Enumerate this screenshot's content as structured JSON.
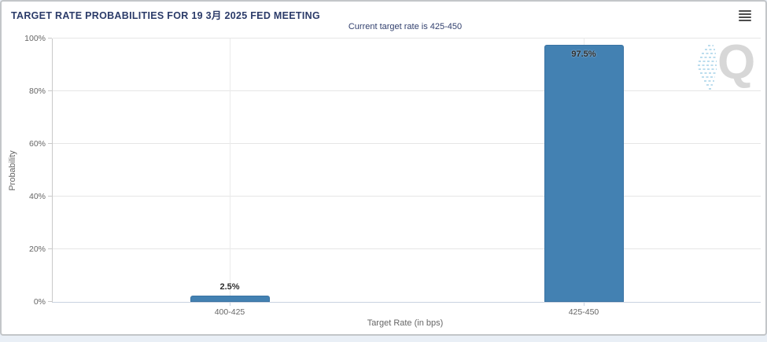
{
  "chart_data": {
    "type": "bar",
    "title": "TARGET RATE PROBABILITIES FOR 19 3月 2025 FED MEETING",
    "subtitle": "Current target rate is 425-450",
    "categories": [
      "400-425",
      "425-450"
    ],
    "values": [
      2.5,
      97.5
    ],
    "value_labels": [
      "2.5%",
      "97.5%"
    ],
    "xlabel": "Target Rate (in bps)",
    "ylabel": "Probability",
    "ylim": [
      0,
      100
    ],
    "ytick_labels": [
      "0%",
      "20%",
      "40%",
      "60%",
      "80%",
      "100%"
    ],
    "grid": true,
    "legend": "none",
    "colors": {
      "bar": "#4381b2",
      "bar_border": "#3a73a3",
      "title": "#2b3b69",
      "subtitle": "#32406e",
      "axis_text": "#666666",
      "gridline": "#e6e6e6"
    }
  },
  "menu": {
    "icon": "hamburger-icon"
  },
  "watermark": {
    "letter": "Q"
  }
}
